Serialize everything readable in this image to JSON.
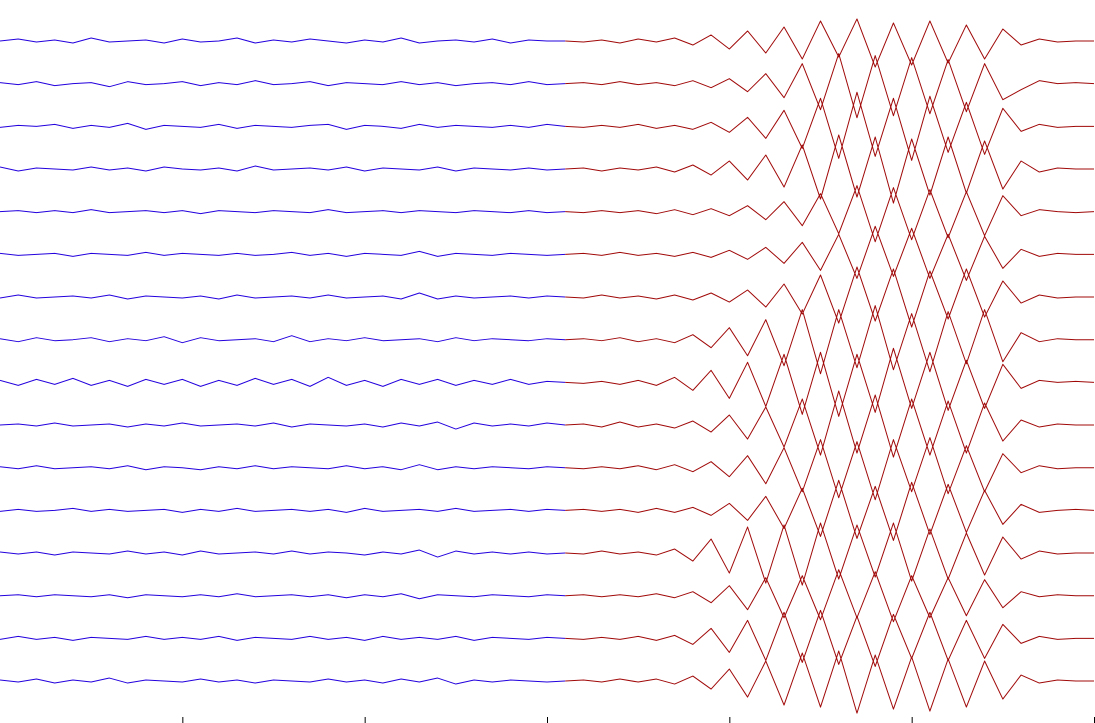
{
  "chart_data": [
    {
      "type": "line",
      "xlim": [
        0,
        6
      ],
      "xticks": [
        1,
        2,
        3,
        4,
        5,
        6
      ],
      "ylim": [
        -21.3,
        21.3
      ],
      "x": [
        0,
        0.1,
        0.2,
        0.3,
        0.4,
        0.5,
        0.6,
        0.7,
        0.8,
        0.9,
        1,
        1.1,
        1.2,
        1.3,
        1.4,
        1.5,
        1.6,
        1.7,
        1.8,
        1.9,
        2,
        2.1,
        2.2,
        2.3,
        2.4,
        2.5,
        2.6,
        2.7,
        2.8,
        2.9,
        3,
        3.1
      ],
      "series": [
        {
          "color": "#2200dd",
          "values": [
            0,
            2,
            -1,
            1,
            -2,
            3,
            -1,
            0,
            1,
            -2,
            2,
            -1,
            0,
            3,
            -2,
            1,
            -1,
            2,
            0,
            -2,
            1,
            -1,
            3,
            -2,
            0,
            1,
            -1,
            2,
            -2,
            1,
            0,
            0
          ]
        },
        {
          "color": "#2200dd",
          "values": [
            1,
            -1,
            2,
            -2,
            0,
            1,
            -3,
            2,
            -1,
            0,
            2,
            -2,
            1,
            -1,
            3,
            -1,
            0,
            2,
            -2,
            1,
            0,
            -1,
            2,
            -1,
            1,
            -2,
            0,
            1,
            -1,
            2,
            -1,
            0
          ]
        },
        {
          "color": "#2200dd",
          "values": [
            -1,
            1,
            0,
            2,
            -2,
            1,
            -1,
            3,
            -3,
            1,
            0,
            -1,
            2,
            -2,
            1,
            0,
            -1,
            1,
            2,
            -3,
            1,
            0,
            -2,
            2,
            -1,
            1,
            0,
            -1,
            1,
            -1,
            2,
            0
          ]
        },
        {
          "color": "#2200dd",
          "values": [
            2,
            -2,
            1,
            0,
            -1,
            2,
            -1,
            1,
            -2,
            2,
            0,
            -1,
            1,
            -2,
            3,
            -1,
            0,
            1,
            -1,
            2,
            -2,
            1,
            0,
            -1,
            2,
            -2,
            1,
            0,
            -1,
            1,
            -1,
            0
          ]
        },
        {
          "color": "#2200dd",
          "values": [
            0,
            1,
            -1,
            1,
            -1,
            2,
            -1,
            0,
            1,
            -1,
            1,
            -2,
            1,
            0,
            -1,
            1,
            0,
            -1,
            2,
            -1,
            0,
            1,
            -1,
            1,
            0,
            -1,
            1,
            0,
            -1,
            1,
            -1,
            0
          ]
        },
        {
          "color": "#2200dd",
          "values": [
            1,
            -1,
            0,
            1,
            -2,
            1,
            0,
            -1,
            2,
            -1,
            1,
            0,
            -1,
            1,
            -1,
            0,
            2,
            -1,
            1,
            -2,
            1,
            0,
            -1,
            3,
            -2,
            1,
            0,
            -1,
            1,
            0,
            -1,
            0
          ]
        },
        {
          "color": "#2200dd",
          "values": [
            -1,
            2,
            -1,
            0,
            1,
            -1,
            2,
            -2,
            1,
            0,
            -1,
            1,
            -2,
            2,
            -1,
            0,
            1,
            -1,
            2,
            -1,
            0,
            1,
            -2,
            4,
            -2,
            1,
            -1,
            0,
            1,
            -1,
            1,
            0
          ]
        },
        {
          "color": "#2200dd",
          "values": [
            1,
            -2,
            2,
            -1,
            0,
            2,
            -2,
            1,
            -1,
            3,
            -3,
            2,
            -1,
            0,
            1,
            -2,
            4,
            -2,
            1,
            -1,
            2,
            -1,
            0,
            1,
            -2,
            2,
            -1,
            1,
            0,
            -1,
            1,
            0
          ]
        },
        {
          "color": "#2200dd",
          "values": [
            2,
            -3,
            3,
            -2,
            4,
            -3,
            2,
            -4,
            3,
            -2,
            3,
            -4,
            2,
            -3,
            4,
            -2,
            3,
            -4,
            5,
            -3,
            2,
            -4,
            3,
            -2,
            3,
            -3,
            2,
            -2,
            3,
            -2,
            1,
            0
          ]
        },
        {
          "color": "#2200dd",
          "values": [
            0,
            1,
            -1,
            2,
            -1,
            0,
            1,
            -2,
            1,
            -1,
            2,
            -1,
            0,
            1,
            -1,
            2,
            -2,
            1,
            0,
            -1,
            1,
            -2,
            2,
            -1,
            3,
            -4,
            2,
            -1,
            1,
            -1,
            2,
            0
          ]
        },
        {
          "color": "#2200dd",
          "values": [
            1,
            -1,
            2,
            -1,
            0,
            1,
            -1,
            2,
            -2,
            1,
            0,
            -2,
            1,
            -1,
            2,
            -1,
            1,
            0,
            -1,
            2,
            -1,
            1,
            -2,
            3,
            -2,
            1,
            -1,
            1,
            0,
            -1,
            1,
            0
          ]
        },
        {
          "color": "#2200dd",
          "values": [
            -1,
            1,
            -1,
            0,
            2,
            -1,
            1,
            -1,
            0,
            1,
            -2,
            1,
            -1,
            2,
            -1,
            0,
            1,
            -1,
            1,
            -2,
            2,
            -1,
            0,
            1,
            -1,
            2,
            -1,
            0,
            1,
            -1,
            1,
            0
          ]
        },
        {
          "color": "#2200dd",
          "values": [
            1,
            -1,
            1,
            -2,
            1,
            0,
            -1,
            2,
            -1,
            1,
            -2,
            2,
            -1,
            0,
            1,
            -1,
            2,
            -1,
            1,
            0,
            -2,
            1,
            -1,
            3,
            -4,
            2,
            -1,
            1,
            -1,
            1,
            -1,
            0
          ]
        },
        {
          "color": "#2200dd",
          "values": [
            0,
            1,
            -1,
            1,
            0,
            -1,
            1,
            -2,
            1,
            0,
            -1,
            1,
            -1,
            2,
            -1,
            0,
            1,
            -1,
            1,
            -2,
            1,
            -1,
            2,
            -3,
            1,
            0,
            -1,
            1,
            0,
            -1,
            1,
            0
          ]
        },
        {
          "color": "#2200dd",
          "values": [
            -1,
            2,
            -1,
            1,
            -2,
            1,
            0,
            -1,
            2,
            -1,
            1,
            -1,
            2,
            -2,
            1,
            0,
            -1,
            2,
            -1,
            1,
            -2,
            2,
            -1,
            1,
            -1,
            2,
            -2,
            1,
            0,
            -1,
            1,
            0
          ]
        },
        {
          "color": "#2200dd",
          "values": [
            1,
            -1,
            2,
            -2,
            1,
            -1,
            3,
            -2,
            1,
            0,
            -1,
            2,
            -1,
            1,
            -2,
            1,
            0,
            -1,
            2,
            -1,
            1,
            -2,
            2,
            -1,
            3,
            -3,
            1,
            -1,
            1,
            0,
            -1,
            0
          ]
        }
      ]
    },
    {
      "type": "line",
      "xlim": [
        0,
        6
      ],
      "ylim": [
        -21.3,
        21.3
      ],
      "x": [
        3.1,
        3.2,
        3.3,
        3.4,
        3.5,
        3.6,
        3.7,
        3.8,
        3.9,
        4,
        4.1,
        4.2,
        4.3,
        4.4,
        4.5,
        4.6,
        4.7,
        4.8,
        4.9,
        5,
        5.1,
        5.2,
        5.3,
        5.4,
        5.5,
        5.6,
        5.7,
        5.8,
        5.9,
        6
      ],
      "series": [
        {
          "color": "#a00808",
          "values": [
            0,
            -1,
            1,
            -2,
            2,
            -1,
            3,
            -4,
            6,
            -8,
            10,
            -12,
            14,
            -18,
            20,
            -16,
            22,
            -26,
            18,
            -24,
            20,
            -22,
            16,
            -18,
            12,
            -4,
            2,
            -1,
            0,
            0
          ]
        },
        {
          "color": "#a00808",
          "values": [
            0,
            1,
            -1,
            2,
            -1,
            1,
            -2,
            3,
            -4,
            5,
            -8,
            10,
            -14,
            20,
            -26,
            30,
            -34,
            28,
            -32,
            26,
            -30,
            24,
            -28,
            20,
            -16,
            -6,
            3,
            0,
            1,
            0
          ]
        },
        {
          "color": "#a00808",
          "values": [
            0,
            -1,
            1,
            -1,
            2,
            -2,
            1,
            -3,
            4,
            -6,
            9,
            -12,
            16,
            -22,
            28,
            -32,
            34,
            -30,
            28,
            -34,
            30,
            -26,
            24,
            -28,
            18,
            -5,
            2,
            -1,
            0,
            0
          ]
        },
        {
          "color": "#a00808",
          "values": [
            0,
            1,
            -2,
            1,
            -1,
            2,
            -3,
            4,
            -6,
            8,
            -11,
            14,
            -18,
            24,
            -30,
            34,
            -28,
            32,
            -34,
            30,
            -26,
            32,
            -24,
            28,
            -20,
            8,
            -3,
            1,
            0,
            0
          ]
        },
        {
          "color": "#a00808",
          "values": [
            0,
            -1,
            1,
            -1,
            1,
            -2,
            2,
            -3,
            3,
            -4,
            6,
            -8,
            10,
            -14,
            18,
            -22,
            26,
            -30,
            24,
            -28,
            22,
            -26,
            20,
            -24,
            16,
            -4,
            2,
            0,
            -1,
            0
          ]
        },
        {
          "color": "#a00808",
          "values": [
            0,
            1,
            -1,
            2,
            -1,
            1,
            -2,
            2,
            -3,
            4,
            -5,
            7,
            -9,
            12,
            -16,
            20,
            -24,
            28,
            -22,
            26,
            -24,
            20,
            -26,
            18,
            -14,
            5,
            -2,
            1,
            0,
            0
          ]
        },
        {
          "color": "#a00808",
          "values": [
            0,
            -1,
            2,
            -1,
            1,
            -2,
            2,
            -3,
            4,
            -5,
            7,
            -10,
            13,
            -17,
            22,
            -26,
            30,
            -24,
            28,
            -30,
            26,
            -22,
            28,
            -20,
            16,
            -6,
            2,
            -1,
            0,
            0
          ]
        },
        {
          "color": "#a00808",
          "values": [
            0,
            1,
            -1,
            2,
            -2,
            1,
            -3,
            5,
            -8,
            12,
            -16,
            20,
            -26,
            30,
            -34,
            30,
            -28,
            34,
            -30,
            26,
            -32,
            28,
            -24,
            30,
            -22,
            7,
            -2,
            1,
            0,
            0
          ]
        },
        {
          "color": "#a00808",
          "values": [
            0,
            -1,
            1,
            -2,
            2,
            -3,
            5,
            -8,
            12,
            -16,
            20,
            -24,
            28,
            -32,
            30,
            -34,
            28,
            -30,
            34,
            -26,
            30,
            -28,
            22,
            -26,
            18,
            -6,
            2,
            0,
            1,
            0
          ]
        },
        {
          "color": "#a00808",
          "values": [
            0,
            1,
            -2,
            3,
            -2,
            1,
            -3,
            4,
            -7,
            10,
            -14,
            18,
            -22,
            26,
            -30,
            34,
            -28,
            30,
            -32,
            26,
            -30,
            24,
            -28,
            22,
            -16,
            5,
            -2,
            1,
            0,
            0
          ]
        },
        {
          "color": "#a00808",
          "values": [
            0,
            -1,
            1,
            -1,
            2,
            -2,
            3,
            -4,
            6,
            -9,
            12,
            -16,
            20,
            -24,
            28,
            -30,
            26,
            -32,
            28,
            -24,
            30,
            -26,
            22,
            -24,
            14,
            -5,
            2,
            -1,
            0,
            0
          ]
        },
        {
          "color": "#a00808",
          "values": [
            0,
            1,
            -1,
            1,
            -2,
            2,
            -2,
            3,
            -5,
            7,
            -10,
            14,
            -18,
            22,
            -26,
            30,
            -28,
            24,
            -30,
            28,
            -24,
            26,
            -22,
            20,
            -14,
            6,
            -2,
            0,
            1,
            0
          ]
        },
        {
          "color": "#a00808",
          "values": [
            0,
            -1,
            2,
            -1,
            1,
            -2,
            4,
            -8,
            14,
            -20,
            26,
            -30,
            28,
            -32,
            30,
            -26,
            28,
            -24,
            30,
            -28,
            24,
            -26,
            20,
            -22,
            16,
            -6,
            2,
            -1,
            0,
            0
          ]
        },
        {
          "color": "#a00808",
          "values": [
            0,
            1,
            -1,
            1,
            -1,
            2,
            -2,
            4,
            -7,
            10,
            -14,
            18,
            -22,
            20,
            -24,
            26,
            -22,
            24,
            -26,
            20,
            -22,
            18,
            -20,
            16,
            -12,
            4,
            -1,
            1,
            0,
            0
          ]
        },
        {
          "color": "#a00808",
          "values": [
            0,
            -1,
            1,
            -1,
            2,
            -2,
            3,
            -6,
            10,
            -14,
            18,
            -22,
            26,
            -24,
            28,
            -26,
            22,
            -28,
            24,
            -20,
            26,
            -22,
            18,
            -20,
            14,
            -5,
            2,
            -1,
            0,
            0
          ]
        },
        {
          "color": "#a00808",
          "values": [
            0,
            1,
            -1,
            2,
            -1,
            2,
            -3,
            5,
            -8,
            12,
            -16,
            20,
            -24,
            28,
            -26,
            30,
            -32,
            26,
            -28,
            24,
            -30,
            22,
            -26,
            20,
            -18,
            6,
            -2,
            1,
            0,
            0
          ]
        }
      ]
    }
  ]
}
